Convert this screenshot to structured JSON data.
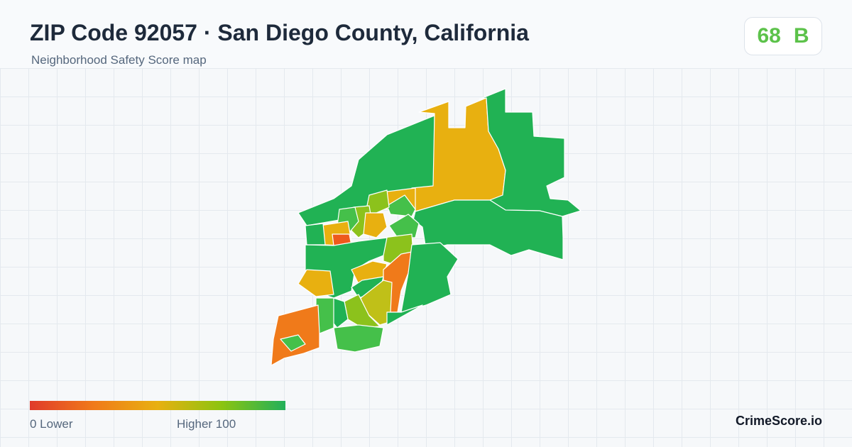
{
  "header": {
    "title": "ZIP Code 92057 · San Diego County, California",
    "subtitle": "Neighborhood Safety Score map"
  },
  "score": {
    "value": "68",
    "grade": "B",
    "color": "#5cc24a"
  },
  "legend": {
    "min_label": "0  Lower",
    "max_label": "Higher  100",
    "colors": [
      "#e03a2a",
      "#f07a1a",
      "#e8b010",
      "#8cc410",
      "#22b05a"
    ]
  },
  "map": {
    "neighborhood_colors": {
      "green": "#21b254",
      "light_green": "#45c04a",
      "yellow_green": "#8cc21c",
      "olive": "#c0c018",
      "yellow": "#e8b010",
      "orange": "#f07a1a",
      "red_orange": "#ee5a1c"
    }
  },
  "brand": {
    "label": "CrimeScore.io"
  }
}
